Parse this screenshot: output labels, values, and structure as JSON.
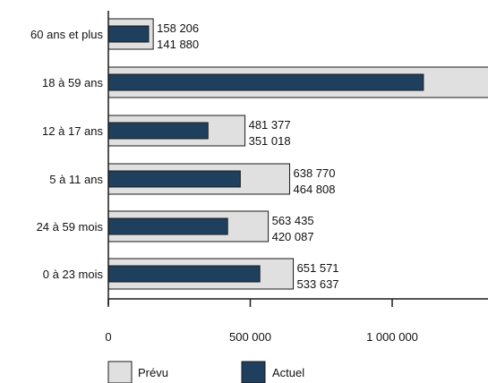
{
  "chart_data": {
    "type": "bar",
    "orientation": "horizontal",
    "categories": [
      "60 ans et plus",
      "18 à 59 ans",
      "12 à 17 ans",
      "5 à 11 ans",
      "24 à 59 mois",
      "0 à 23 mois"
    ],
    "series": [
      {
        "name": "Prévu",
        "values": [
          158206,
          1345000,
          481377,
          638770,
          563435,
          651571
        ],
        "labels": [
          "158 206",
          "",
          "481 377",
          "638 770",
          "563 435",
          "651 571"
        ],
        "color": "#e0e0e0",
        "stroke": "#1a1a1a"
      },
      {
        "name": "Actuel",
        "values": [
          141880,
          1110000,
          351018,
          464808,
          420087,
          533637
        ],
        "labels": [
          "141 880",
          "",
          "351 018",
          "464 808",
          "420 087",
          "533 637"
        ],
        "color": "#1f3f5f",
        "stroke": "#1a1a1a"
      }
    ],
    "xlim": [
      0,
      1340000
    ],
    "xticks": [
      0,
      500000,
      1000000
    ],
    "xtick_labels": [
      "0",
      "500 000",
      "1 000 000"
    ],
    "legend_position": "bottom-left",
    "grid": false
  }
}
